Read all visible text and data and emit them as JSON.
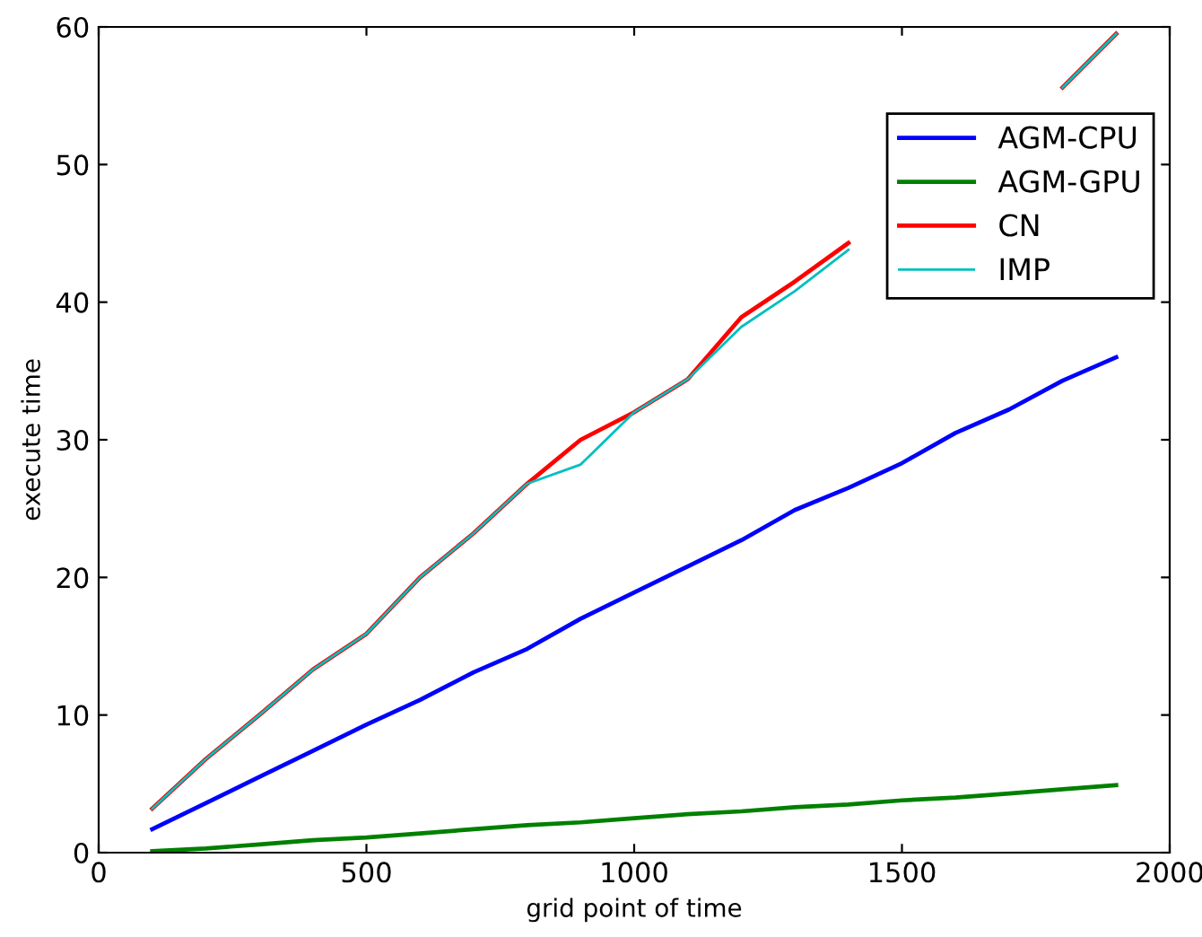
{
  "chart_data": {
    "type": "line",
    "xlabel": "grid point of time",
    "ylabel": "execute time",
    "x": [
      100,
      200,
      300,
      400,
      500,
      600,
      700,
      800,
      900,
      1000,
      1100,
      1200,
      1300,
      1400,
      1500,
      1600,
      1700,
      1800,
      1900
    ],
    "series": [
      {
        "name": "AGM-CPU",
        "color": "#0000ff",
        "values": [
          1.7,
          3.6,
          5.5,
          7.4,
          9.3,
          11.1,
          13.1,
          14.8,
          17,
          18.9,
          20.8,
          22.7,
          24.9,
          26.5,
          28.3,
          30.5,
          32.2,
          34.3,
          36
        ]
      },
      {
        "name": "AGM-GPU",
        "color": "#008000",
        "values": [
          0.1,
          0.3,
          0.6,
          0.9,
          1.1,
          1.4,
          1.7,
          2.0,
          2.2,
          2.5,
          2.8,
          3.0,
          3.3,
          3.5,
          3.8,
          4.0,
          4.3,
          4.6,
          4.9
        ]
      },
      {
        "name": "CN",
        "color": "#ff0000",
        "values": [
          3.2,
          6.8,
          10,
          13.3,
          15.9,
          20,
          23.2,
          26.8,
          30,
          32,
          34.4,
          38.9,
          41.5,
          44.3,
          null,
          null,
          null,
          55.6,
          59.5
        ]
      },
      {
        "name": "IMP",
        "color": "#00bfbf",
        "values": [
          3.2,
          6.8,
          10,
          13.3,
          15.9,
          20,
          23.2,
          26.8,
          28.2,
          32,
          34.4,
          38.2,
          40.8,
          43.8,
          null,
          null,
          null,
          55.6,
          59.5
        ]
      }
    ],
    "xlim": [
      0,
      2000
    ],
    "xticks": [
      0,
      500,
      1000,
      1500,
      2000
    ],
    "ylim": [
      0,
      60
    ],
    "yticks": [
      0,
      10,
      20,
      30,
      40,
      50,
      60
    ],
    "grid": false,
    "legend": "top right"
  }
}
